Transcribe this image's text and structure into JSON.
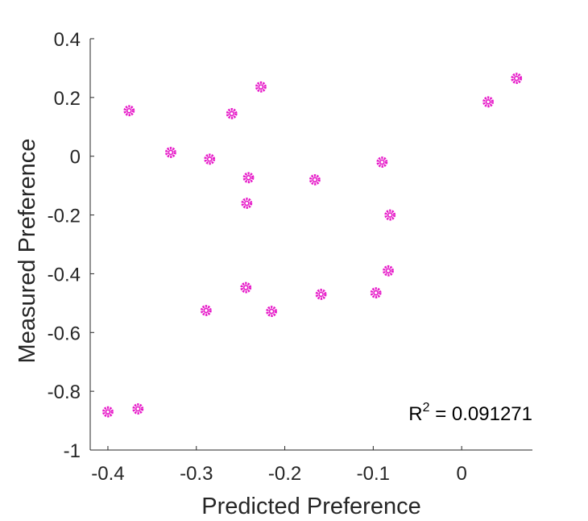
{
  "chart_data": {
    "type": "scatter",
    "xlabel": "Predicted Preference",
    "ylabel": "Measured Preference",
    "xlim": [
      -0.42,
      0.08
    ],
    "ylim": [
      -1,
      0.4
    ],
    "xticks": [
      -0.4,
      -0.3,
      -0.2,
      -0.1,
      0
    ],
    "xtick_labels": [
      "-0.4",
      "-0.3",
      "-0.2",
      "-0.1",
      "0"
    ],
    "yticks": [
      -1,
      -0.8,
      -0.6,
      -0.4,
      -0.2,
      0,
      0.2,
      0.4
    ],
    "ytick_labels": [
      "-1",
      "-0.8",
      "-0.6",
      "-0.4",
      "-0.2",
      "0",
      "0.2",
      "0.4"
    ],
    "grid": false,
    "marker_color": "#e619c8",
    "annotation": {
      "prefix": "R",
      "superscript": "2",
      "suffix": " = 0.091271"
    },
    "series": [
      {
        "points": [
          [
            -0.4,
            -0.87
          ],
          [
            -0.366,
            -0.86
          ],
          [
            -0.376,
            0.155
          ],
          [
            -0.329,
            0.013
          ],
          [
            -0.289,
            -0.525
          ],
          [
            -0.285,
            -0.01
          ],
          [
            -0.26,
            0.145
          ],
          [
            -0.227,
            0.236
          ],
          [
            -0.244,
            -0.447
          ],
          [
            -0.241,
            -0.073
          ],
          [
            -0.243,
            -0.16
          ],
          [
            -0.215,
            -0.528
          ],
          [
            -0.166,
            -0.08
          ],
          [
            -0.159,
            -0.47
          ],
          [
            -0.097,
            -0.465
          ],
          [
            -0.09,
            -0.02
          ],
          [
            -0.083,
            -0.39
          ],
          [
            -0.081,
            -0.2
          ],
          [
            0.03,
            0.185
          ],
          [
            0.062,
            0.265
          ]
        ]
      }
    ]
  }
}
